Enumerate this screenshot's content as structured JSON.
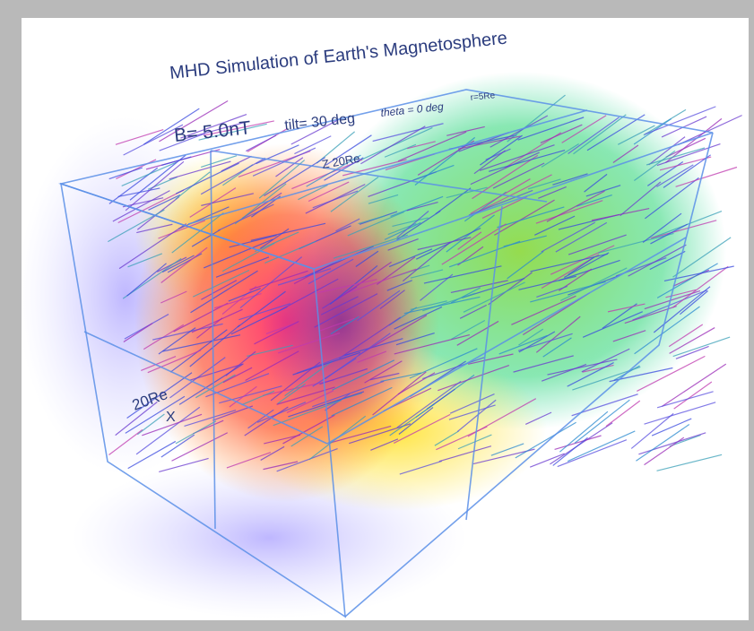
{
  "title": "MHD Simulation of Earth's Magnetosphere",
  "parameters": {
    "b_field": "B= 5.0nT",
    "tilt": "tilt= 30 deg",
    "theta": "theta =  0 deg",
    "radius": "r=5Re"
  },
  "labels": {
    "z_scale": "Z 20Re",
    "x_scale": "20Re",
    "x_axis": "X"
  }
}
